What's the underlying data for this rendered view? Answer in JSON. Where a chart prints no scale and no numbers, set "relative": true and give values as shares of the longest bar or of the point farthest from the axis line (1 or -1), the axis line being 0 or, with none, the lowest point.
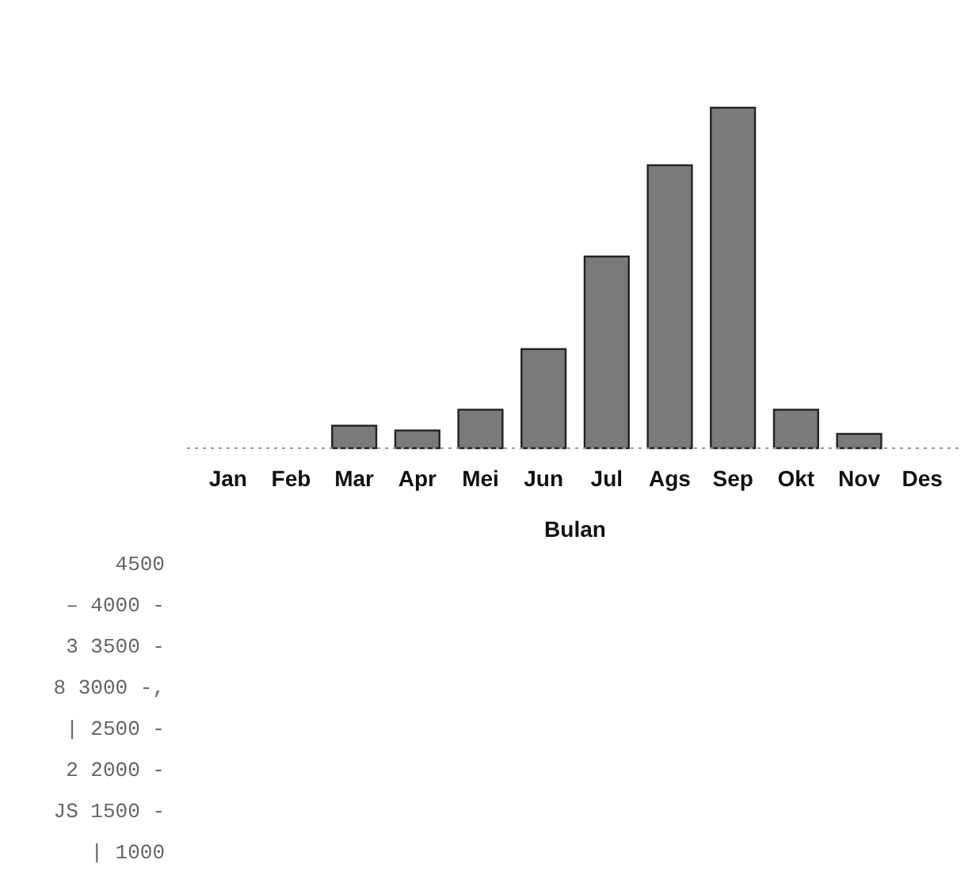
{
  "chart_data": {
    "type": "bar",
    "relative": true,
    "xlabel": "Bulan",
    "categories": [
      "Jan",
      "Feb",
      "Mar",
      "Apr",
      "Mei",
      "Jun",
      "Jul",
      "Ags",
      "Sep",
      "Okt",
      "Nov",
      "Des"
    ],
    "values": [
      0,
      0,
      0.066,
      0.052,
      0.113,
      0.291,
      0.563,
      0.831,
      1,
      0.113,
      0.042,
      0
    ],
    "color": "#7a7a7a",
    "annotations": [
      "4500",
      "– 4000 -",
      "3 3500 -",
      "8 3000 -,",
      "| 2500 -",
      "2 2000 -",
      "JS 1500 -",
      "| 1000"
    ]
  }
}
